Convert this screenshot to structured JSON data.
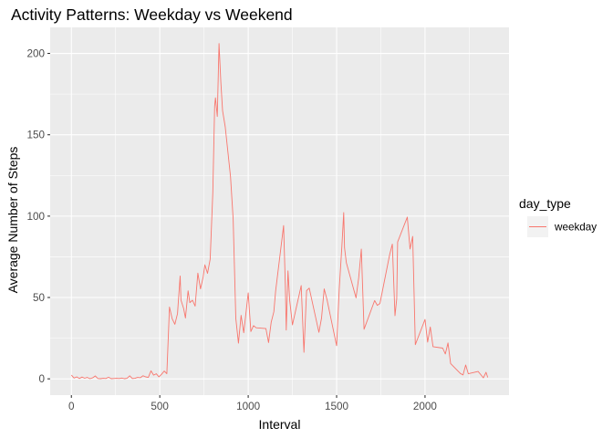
{
  "chart_data": {
    "type": "line",
    "title": "Activity Patterns: Weekday vs Weekend",
    "xlabel": "Interval",
    "ylabel": "Average Number of Steps",
    "xlim": [
      -120,
      2475
    ],
    "ylim": [
      -10,
      216
    ],
    "x_ticks": [
      0,
      500,
      1000,
      1500,
      2000
    ],
    "y_ticks": [
      0,
      50,
      100,
      150,
      200
    ],
    "x_tick_labels": [
      "0",
      "500",
      "1000",
      "1500",
      "2000"
    ],
    "y_tick_labels": [
      "0",
      "50",
      "100",
      "150",
      "200"
    ],
    "panel_background": "#EBEBEB",
    "grid": true,
    "legend": {
      "title": "day_type",
      "position": "right"
    },
    "series": [
      {
        "name": "weekday",
        "color": "#F8766D",
        "x": [
          0,
          15,
          30,
          45,
          60,
          75,
          90,
          105,
          120,
          135,
          150,
          165,
          180,
          195,
          210,
          225,
          240,
          255,
          270,
          285,
          300,
          315,
          330,
          345,
          360,
          375,
          390,
          405,
          420,
          435,
          450,
          465,
          480,
          495,
          510,
          525,
          540,
          555,
          570,
          585,
          600,
          605,
          615,
          620,
          635,
          645,
          660,
          670,
          685,
          700,
          715,
          730,
          745,
          755,
          770,
          785,
          800,
          810,
          815,
          825,
          835,
          845,
          855,
          870,
          900,
          915,
          930,
          945,
          960,
          975,
          1000,
          1015,
          1030,
          1045,
          1100,
          1115,
          1130,
          1145,
          1155,
          1200,
          1210,
          1215,
          1225,
          1235,
          1250,
          1300,
          1315,
          1330,
          1345,
          1400,
          1415,
          1430,
          1445,
          1500,
          1515,
          1530,
          1540,
          1545,
          1555,
          1610,
          1625,
          1640,
          1655,
          1715,
          1730,
          1745,
          1800,
          1815,
          1830,
          1840,
          1845,
          1900,
          1915,
          1930,
          1945,
          2000,
          2015,
          2030,
          2045,
          2100,
          2115,
          2130,
          2145,
          2200,
          2215,
          2230,
          2245,
          2300,
          2315,
          2330,
          2345,
          2355
        ],
        "values": [
          2.3,
          0.5,
          1.2,
          0.2,
          1.1,
          0.4,
          0.9,
          0.1,
          0.6,
          1.8,
          0.2,
          0.1,
          0.3,
          0.2,
          1.0,
          0.1,
          0.2,
          0.3,
          0.2,
          0.5,
          0.1,
          0.3,
          1.9,
          0.2,
          0.3,
          0.9,
          0.7,
          1.9,
          1.2,
          0.9,
          4.9,
          2.3,
          3.1,
          1.2,
          2.8,
          4.8,
          3.2,
          44.1,
          37.0,
          33.5,
          40.1,
          47.5,
          63.2,
          48.4,
          43.2,
          37.4,
          54.1,
          46.8,
          48.3,
          44.7,
          65.0,
          55.3,
          62.5,
          70.1,
          64.8,
          73.5,
          114.6,
          167.6,
          172.7,
          161.2,
          206.1,
          182.3,
          164.8,
          154.9,
          124.3,
          98.2,
          37.2,
          21.9,
          39.0,
          28.3,
          52.8,
          29.1,
          32.7,
          31.4,
          30.9,
          22.3,
          34.8,
          41.2,
          53.7,
          94.2,
          57.3,
          30.0,
          66.4,
          48.1,
          33.2,
          57.3,
          16.3,
          54.2,
          55.8,
          28.6,
          37.4,
          55.3,
          48.9,
          20.4,
          55.4,
          81.6,
          102.2,
          80.5,
          71.3,
          49.8,
          62.0,
          79.7,
          30.5,
          48.1,
          45.2,
          46.3,
          76.4,
          82.8,
          38.8,
          49.1,
          84.1,
          99.4,
          79.8,
          87.5,
          21.0,
          36.5,
          22.6,
          31.9,
          19.8,
          18.9,
          15.3,
          22.1,
          9.4,
          3.3,
          2.4,
          8.5,
          3.1,
          4.5,
          2.6,
          0.6,
          4.0,
          0.9
        ]
      }
    ]
  }
}
